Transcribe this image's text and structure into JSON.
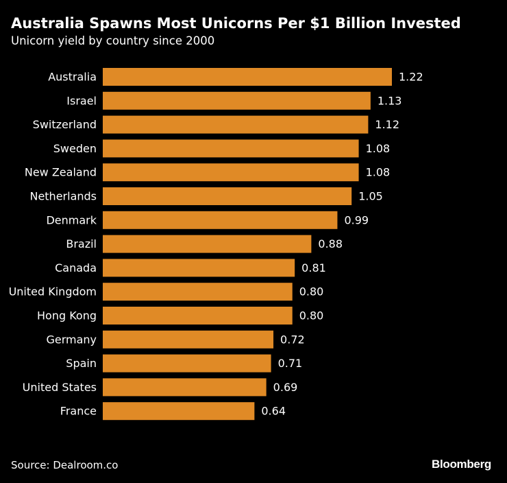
{
  "header": {
    "title": "Australia Spawns Most Unicorns Per $1 Billion Invested",
    "subtitle": "Unicorn yield by country since 2000"
  },
  "footer": {
    "source": "Source: Dealroom.co",
    "brand": "Bloomberg"
  },
  "colors": {
    "background": "#000000",
    "bar": "#E08A26",
    "text": "#FFFFFF"
  },
  "chart_data": {
    "type": "bar",
    "orientation": "horizontal",
    "categories": [
      "Australia",
      "Israel",
      "Switzerland",
      "Sweden",
      "New Zealand",
      "Netherlands",
      "Denmark",
      "Brazil",
      "Canada",
      "United Kingdom",
      "Hong Kong",
      "Germany",
      "Spain",
      "United States",
      "France"
    ],
    "values": [
      1.22,
      1.13,
      1.12,
      1.08,
      1.08,
      1.05,
      0.99,
      0.88,
      0.81,
      0.8,
      0.8,
      0.72,
      0.71,
      0.69,
      0.64
    ],
    "value_labels": [
      "1.22",
      "1.13",
      "1.12",
      "1.08",
      "1.08",
      "1.05",
      "0.99",
      "0.88",
      "0.81",
      "0.80",
      "0.80",
      "0.72",
      "0.71",
      "0.69",
      "0.64"
    ],
    "title": "Australia Spawns Most Unicorns Per $1 Billion Invested",
    "subtitle": "Unicorn yield by country since 2000",
    "xlabel": "",
    "ylabel": "",
    "xlim": [
      0,
      1.22
    ],
    "grid": false,
    "legend": "none"
  }
}
